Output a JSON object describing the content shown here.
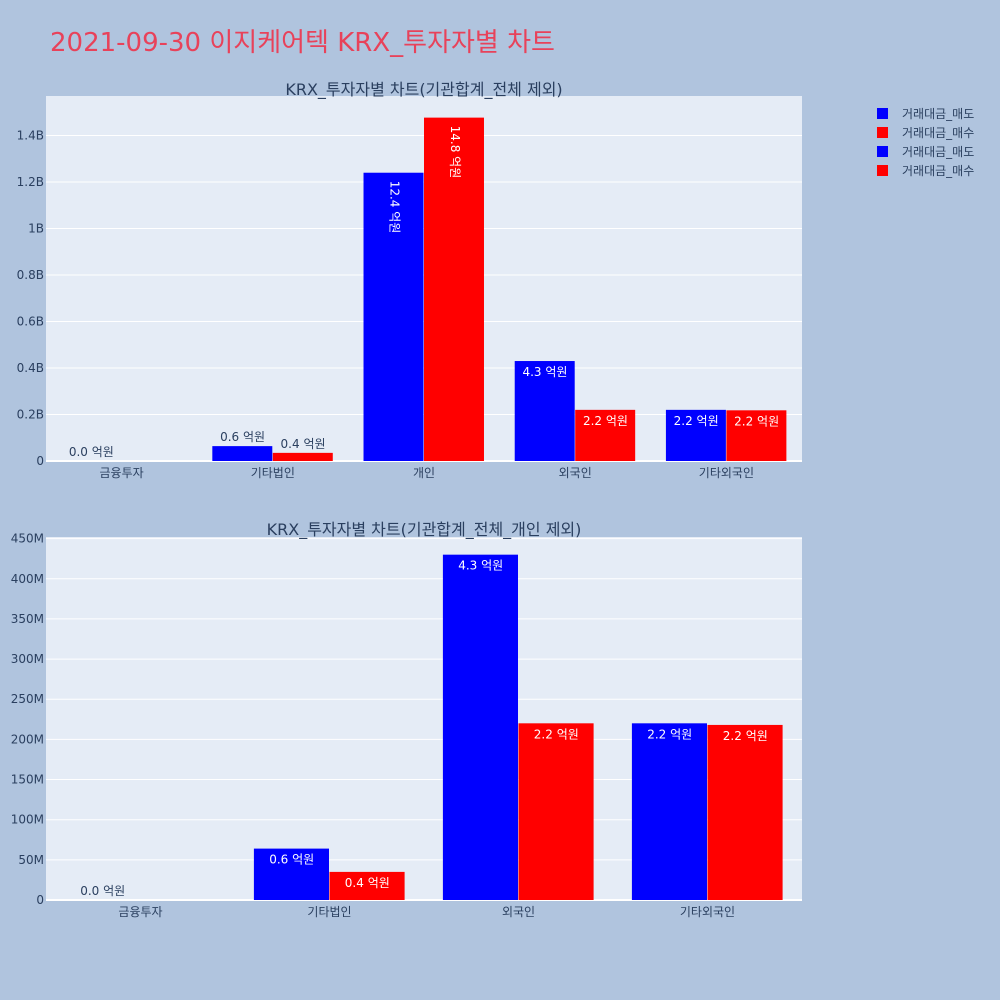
{
  "title": "2021-09-30 이지케어텍 KRX_투자자별 차트",
  "colors": {
    "sell": "#0000ff",
    "buy": "#ff0000",
    "plot_bg": "#e5ecf6",
    "page_bg": "#b0c4de",
    "text": "#2a3f5f"
  },
  "legend": {
    "placement": "top-right",
    "entries": [
      {
        "label": "거래대금_매도",
        "color": "#0000ff"
      },
      {
        "label": "거래대금_매수",
        "color": "#ff0000"
      },
      {
        "label": "거래대금_매도",
        "color": "#0000ff"
      },
      {
        "label": "거래대금_매수",
        "color": "#ff0000"
      }
    ]
  },
  "chart_data": [
    {
      "type": "bar",
      "title": "KRX_투자자별 차트(기관합계_전체 제외)",
      "categories": [
        "금융투자",
        "기타법인",
        "개인",
        "외국인",
        "기타외국인"
      ],
      "series": [
        {
          "name": "거래대금_매도",
          "color": "#0000ff",
          "values": [
            0,
            64000000,
            1240000000,
            430000000,
            220000000
          ],
          "labels": [
            "0.0 억원",
            "0.6 억원",
            "12.4 억원",
            "4.3 억원",
            "2.2 억원"
          ]
        },
        {
          "name": "거래대금_매수",
          "color": "#ff0000",
          "values": [
            0,
            35000000,
            1477000000,
            220000000,
            218000000
          ],
          "labels": [
            "",
            "0.4 억원",
            "14.8 억원",
            "2.2 억원",
            "2.2 억원"
          ]
        }
      ],
      "ylim": [
        0,
        1570000000
      ],
      "yticks": [
        0,
        200000000,
        400000000,
        600000000,
        800000000,
        1000000000,
        1200000000,
        1400000000
      ],
      "ytick_labels": [
        "0",
        "0.2B",
        "0.4B",
        "0.6B",
        "0.8B",
        "1B",
        "1.2B",
        "1.4B"
      ],
      "grid": true
    },
    {
      "type": "bar",
      "title": "KRX_투자자별 차트(기관합계_전체_개인 제외)",
      "categories": [
        "금융투자",
        "기타법인",
        "외국인",
        "기타외국인"
      ],
      "series": [
        {
          "name": "거래대금_매도",
          "color": "#0000ff",
          "values": [
            0,
            64000000,
            430000000,
            220000000
          ],
          "labels": [
            "0.0 억원",
            "0.6 억원",
            "4.3 억원",
            "2.2 억원"
          ]
        },
        {
          "name": "거래대금_매수",
          "color": "#ff0000",
          "values": [
            0,
            35000000,
            220000000,
            218000000
          ],
          "labels": [
            "",
            "0.4 억원",
            "2.2 억원",
            "2.2 억원"
          ]
        }
      ],
      "ylim": [
        0,
        452000000
      ],
      "yticks": [
        0,
        50000000,
        100000000,
        150000000,
        200000000,
        250000000,
        300000000,
        350000000,
        400000000,
        450000000
      ],
      "ytick_labels": [
        "0",
        "50M",
        "100M",
        "150M",
        "200M",
        "250M",
        "300M",
        "350M",
        "400M",
        "450M"
      ],
      "grid": true
    }
  ]
}
